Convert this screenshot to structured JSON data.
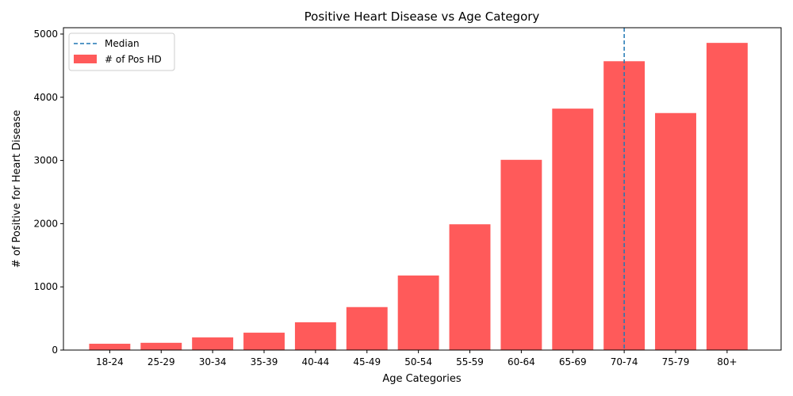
{
  "chart_data": {
    "type": "bar",
    "title": "Positive Heart Disease vs Age Category",
    "xlabel": "Age Categories",
    "ylabel": "# of Positive for Heart Disease",
    "categories": [
      "18-24",
      "25-29",
      "30-34",
      "35-39",
      "40-44",
      "45-49",
      "50-54",
      "55-59",
      "60-64",
      "65-69",
      "70-74",
      "75-79",
      "80+"
    ],
    "series": [
      {
        "name": "# of Pos HD",
        "color": "#ff5a5a",
        "values": [
          100,
          115,
          200,
          275,
          440,
          680,
          1180,
          1990,
          3010,
          3820,
          4570,
          3750,
          4860
        ]
      }
    ],
    "median_line": {
      "name": "Median",
      "category": "70-74",
      "color": "#1f77b4",
      "style": "dashed"
    },
    "ylim": [
      0,
      5100
    ],
    "yticks": [
      0,
      1000,
      2000,
      3000,
      4000,
      5000
    ],
    "grid": false,
    "legend_position": "top-left"
  }
}
